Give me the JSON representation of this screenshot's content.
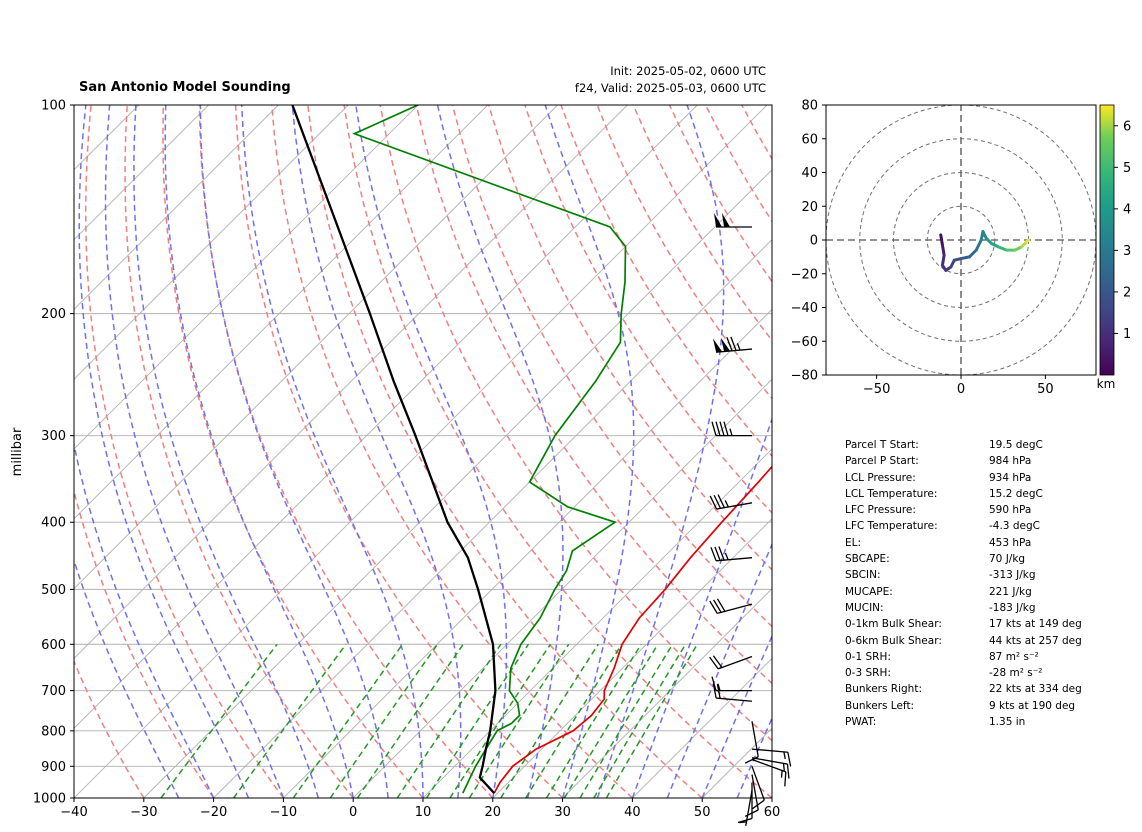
{
  "header": {
    "title": "San Antonio Model Sounding",
    "init": "Init: 2025-05-02, 0600 UTC",
    "valid": "f24, Valid: 2025-05-03, 0600 UTC"
  },
  "chart_data": [
    {
      "type": "line",
      "title": "San Antonio Model Sounding",
      "ylabel": "millibar",
      "xlabel": "",
      "y_scale": "log",
      "x_range": [
        -40,
        60
      ],
      "y_range": [
        1000,
        100
      ],
      "x_ticks": [
        "−40",
        "−30",
        "−20",
        "−10",
        "0",
        "10",
        "20",
        "30",
        "40",
        "50",
        "60"
      ],
      "y_ticks": [
        "100",
        "200",
        "300",
        "400",
        "500",
        "600",
        "700",
        "800",
        "900",
        "1000"
      ],
      "grid": true,
      "series": [
        {
          "color": "#e00000",
          "points": [
            [
              984,
              19.5
            ],
            [
              950,
              18.8
            ],
            [
              900,
              18.3
            ],
            [
              850,
              19.2
            ],
            [
              800,
              21.9
            ],
            [
              760,
              22.3
            ],
            [
              720,
              21.8
            ],
            [
              700,
              20.6
            ],
            [
              650,
              18.8
            ],
            [
              600,
              16.5
            ],
            [
              550,
              15.2
            ],
            [
              500,
              14.8
            ],
            [
              450,
              13.9
            ],
            [
              400,
              13.3
            ],
            [
              350,
              12.8
            ],
            [
              300,
              12.0
            ],
            [
              250,
              11.0
            ],
            [
              200,
              9.5
            ],
            [
              180,
              9.0
            ],
            [
              150,
              12.0
            ],
            [
              130,
              15.0
            ],
            [
              115,
              18.0
            ],
            [
              100,
              20.0
            ]
          ]
        },
        {
          "color": "#008000",
          "points": [
            [
              984,
              15.0
            ],
            [
              900,
              13.0
            ],
            [
              850,
              12.0
            ],
            [
              800,
              11.0
            ],
            [
              780,
              12.0
            ],
            [
              760,
              12.0
            ],
            [
              730,
              10.0
            ],
            [
              700,
              7.0
            ],
            [
              650,
              4.0
            ],
            [
              600,
              2.0
            ],
            [
              550,
              1.0
            ],
            [
              500,
              -1.0
            ],
            [
              470,
              -2.0
            ],
            [
              440,
              -4.0
            ],
            [
              400,
              -2.0
            ],
            [
              380,
              -11.0
            ],
            [
              350,
              -20.0
            ],
            [
              300,
              -23.0
            ],
            [
              250,
              -25.0
            ],
            [
              220,
              -27.0
            ],
            [
              200,
              -31.0
            ],
            [
              180,
              -35.0
            ],
            [
              160,
              -40.0
            ],
            [
              150,
              -45.0
            ],
            [
              110,
              -95.0
            ],
            [
              100,
              -90.0
            ]
          ]
        },
        {
          "color": "#000000",
          "points": [
            [
              984,
              19.5
            ],
            [
              934,
              15.2
            ],
            [
              900,
              14.0
            ],
            [
              850,
              12.0
            ],
            [
              800,
              10.0
            ],
            [
              700,
              5.0
            ],
            [
              600,
              -2.0
            ],
            [
              500,
              -12.0
            ],
            [
              450,
              -18.0
            ],
            [
              400,
              -26.0
            ],
            [
              300,
              -43.0
            ],
            [
              250,
              -54.0
            ],
            [
              200,
              -67.0
            ],
            [
              150,
              -84.0
            ],
            [
              100,
              -108.0
            ]
          ]
        }
      ],
      "wind_barbs": [
        {
          "p": 150,
          "kts": 100,
          "from_deg": 270
        },
        {
          "p": 225,
          "kts": 125,
          "from_deg": 265
        },
        {
          "p": 300,
          "kts": 45,
          "from_deg": 270
        },
        {
          "p": 375,
          "kts": 35,
          "from_deg": 260
        },
        {
          "p": 450,
          "kts": 35,
          "from_deg": 265
        },
        {
          "p": 525,
          "kts": 30,
          "from_deg": 255
        },
        {
          "p": 625,
          "kts": 20,
          "from_deg": 250
        },
        {
          "p": 700,
          "kts": 15,
          "from_deg": 270
        },
        {
          "p": 725,
          "kts": 20,
          "from_deg": 275
        },
        {
          "p": 775,
          "kts": 10,
          "from_deg": 170
        },
        {
          "p": 850,
          "kts": 15,
          "from_deg": 95
        },
        {
          "p": 875,
          "kts": 15,
          "from_deg": 100
        },
        {
          "p": 880,
          "kts": 15,
          "from_deg": 110
        },
        {
          "p": 900,
          "kts": 10,
          "from_deg": 160
        },
        {
          "p": 925,
          "kts": 10,
          "from_deg": 170
        },
        {
          "p": 950,
          "kts": 10,
          "from_deg": 180
        },
        {
          "p": 975,
          "kts": 5,
          "from_deg": 190
        }
      ]
    },
    {
      "type": "line",
      "title": "",
      "x_range": [
        -80,
        80
      ],
      "y_range": [
        -80,
        80
      ],
      "x_ticks": [
        "−50",
        "0",
        "50"
      ],
      "y_ticks": [
        "80",
        "60",
        "40",
        "20",
        "0",
        "−20",
        "−40",
        "−60",
        "−80"
      ],
      "rings": [
        20,
        40,
        60,
        80
      ],
      "colorbar": {
        "label": "km",
        "ticks": [
          "1",
          "2",
          "3",
          "4",
          "5",
          "6"
        ],
        "min": 0,
        "max": 6.5
      },
      "series": [
        {
          "points": [
            [
              -12,
              3
            ],
            [
              -11,
              -3
            ],
            [
              -10,
              -9
            ],
            [
              -11,
              -15
            ],
            [
              -9,
              -18
            ],
            [
              -6,
              -16
            ],
            [
              -4,
              -12
            ],
            [
              0,
              -11
            ],
            [
              5,
              -10
            ],
            [
              9,
              -6
            ],
            [
              12,
              0
            ],
            [
              13,
              5
            ],
            [
              15,
              1
            ],
            [
              18,
              -2
            ],
            [
              22,
              -4
            ],
            [
              27,
              -6
            ],
            [
              32,
              -6
            ],
            [
              36,
              -4
            ],
            [
              39,
              -1
            ],
            [
              40,
              0
            ]
          ],
          "height_km": [
            0,
            0.3,
            0.6,
            0.9,
            1.1,
            1.3,
            1.5,
            1.8,
            2.1,
            2.5,
            2.9,
            3.2,
            3.5,
            3.9,
            4.3,
            4.8,
            5.3,
            5.7,
            6.1,
            6.4
          ]
        }
      ]
    }
  ],
  "hodo_labels": {
    "km": "km"
  },
  "stats": [
    {
      "label": "Parcel T Start:",
      "value": "19.5 degC"
    },
    {
      "label": "Parcel P Start:",
      "value": "984 hPa"
    },
    {
      "label": "LCL Pressure:",
      "value": "934 hPa"
    },
    {
      "label": "LCL Temperature:",
      "value": "15.2 degC"
    },
    {
      "label": "LFC Pressure:",
      "value": "590 hPa"
    },
    {
      "label": "LFC Temperature:",
      "value": "-4.3 degC"
    },
    {
      "label": "EL:",
      "value": "453 hPa"
    },
    {
      "label": "SBCAPE:",
      "value": "70 J/kg"
    },
    {
      "label": "SBCIN:",
      "value": "-313 J/kg"
    },
    {
      "label": "MUCAPE:",
      "value": "221 J/kg"
    },
    {
      "label": "MUCIN:",
      "value": "-183 J/kg"
    },
    {
      "label": "0-1km Bulk Shear:",
      "value": "17 kts at 149 deg"
    },
    {
      "label": "0-6km Bulk Shear:",
      "value": "44 kts at 257 deg"
    },
    {
      "label": "0-1 SRH:",
      "value": "87 m² s⁻²"
    },
    {
      "label": "0-3 SRH:",
      "value": "-28 m² s⁻²"
    },
    {
      "label": "Bunkers Right:",
      "value": "22 kts at 334 deg"
    },
    {
      "label": "Bunkers Left:",
      "value": "9 kts at 190 deg"
    },
    {
      "label": "PWAT:",
      "value": "1.35 in"
    }
  ],
  "colors": {
    "temperature": "#e00000",
    "dewpoint": "#008000",
    "parcel": "#000000",
    "dry_adiabat": "#f08080",
    "moist_adiabat": "#7070f0",
    "mixing_ratio": "#229922"
  }
}
